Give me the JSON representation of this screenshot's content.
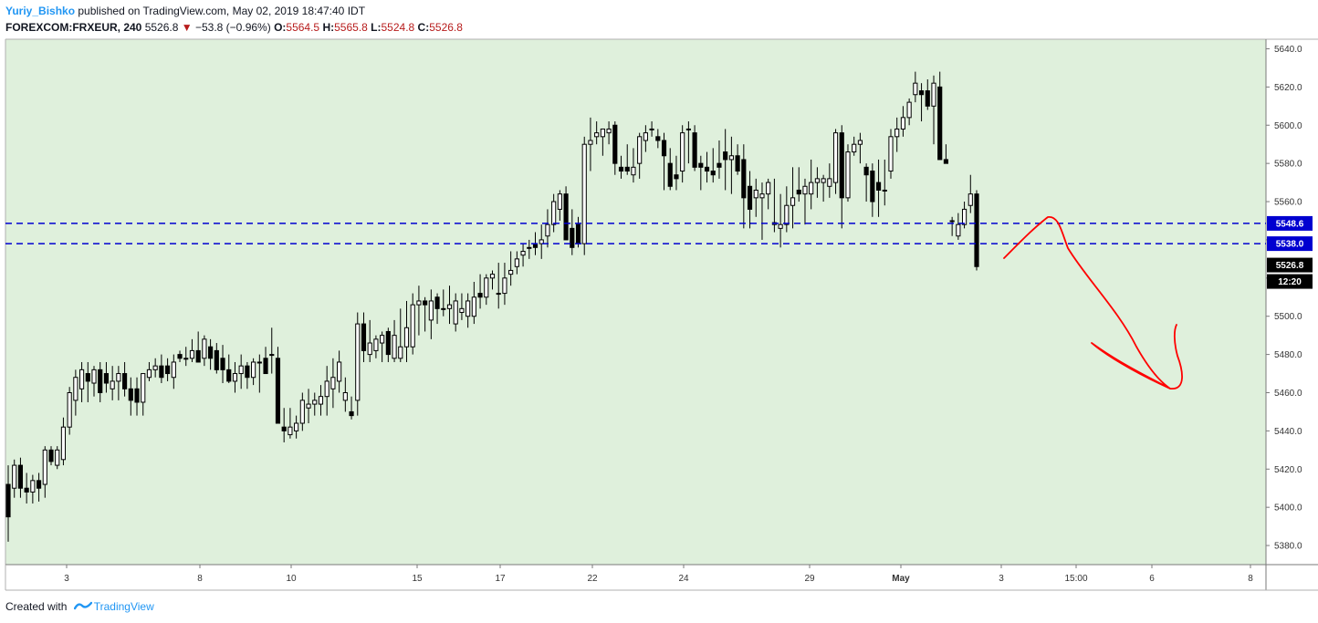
{
  "header": {
    "author": "Yuriy_Bishko",
    "published_text": "published on TradingView.com, May 02, 2019 18:47:40 IDT",
    "symbol": "FOREXCOM:FRXEUR, 240",
    "last": "5526.8",
    "change": "−53.8 (−0.96%)",
    "o_label": "O:",
    "o_value": "5564.5",
    "h_label": "H:",
    "h_value": "5565.8",
    "l_label": "L:",
    "l_value": "5524.8",
    "c_label": "C:",
    "c_value": "5526.8"
  },
  "footer": {
    "created_with": "Created with",
    "brand": "TradingView"
  },
  "colors": {
    "plot_bg": "#dff0dc",
    "up_body": "#ffffff",
    "down_body": "#000000",
    "level_line": "#0000d0",
    "level_label_bg": "#0000d0",
    "price_label_bg": "#000000",
    "drawing": "#ff0000"
  },
  "chart_data": {
    "type": "candlestick",
    "y_axis": {
      "range": [
        5370,
        5645
      ],
      "ticks": [
        5380,
        5400,
        5420,
        5440,
        5460,
        5480,
        5500,
        5520,
        5540,
        5560,
        5580,
        5600,
        5620,
        5640
      ]
    },
    "x_axis": {
      "tick_labels": [
        "3",
        "8",
        "10",
        "15",
        "17",
        "22",
        "24",
        "29",
        "May",
        "3",
        "15:00",
        "6",
        "8"
      ]
    },
    "levels": [
      5548.6,
      5538.0
    ],
    "level_labels": [
      "5548.6",
      "5538.0"
    ],
    "last_price_label": "5526.8",
    "countdown_label": "12:20",
    "candles": [
      [
        5412,
        5422,
        5382,
        5395
      ],
      [
        5410,
        5425,
        5405,
        5422
      ],
      [
        5422,
        5426,
        5405,
        5410
      ],
      [
        5410,
        5418,
        5402,
        5408
      ],
      [
        5408,
        5417,
        5402,
        5414
      ],
      [
        5414,
        5418,
        5403,
        5410
      ],
      [
        5412,
        5432,
        5405,
        5430
      ],
      [
        5430,
        5432,
        5422,
        5424
      ],
      [
        5422,
        5432,
        5420,
        5430
      ],
      [
        5425,
        5447,
        5422,
        5442
      ],
      [
        5442,
        5463,
        5438,
        5460
      ],
      [
        5456,
        5472,
        5448,
        5468
      ],
      [
        5462,
        5476,
        5455,
        5472
      ],
      [
        5470,
        5476,
        5455,
        5466
      ],
      [
        5465,
        5474,
        5458,
        5472
      ],
      [
        5472,
        5476,
        5455,
        5460
      ],
      [
        5470,
        5476,
        5460,
        5465
      ],
      [
        5462,
        5474,
        5456,
        5466
      ],
      [
        5466,
        5474,
        5456,
        5470
      ],
      [
        5470,
        5476,
        5458,
        5462
      ],
      [
        5462,
        5468,
        5448,
        5456
      ],
      [
        5462,
        5468,
        5448,
        5455
      ],
      [
        5455,
        5470,
        5448,
        5470
      ],
      [
        5468,
        5476,
        5466,
        5472
      ],
      [
        5472,
        5478,
        5468,
        5474
      ],
      [
        5474,
        5480,
        5465,
        5468
      ],
      [
        5474,
        5478,
        5466,
        5470
      ],
      [
        5468,
        5480,
        5462,
        5476
      ],
      [
        5480,
        5482,
        5476,
        5478
      ],
      [
        5478,
        5484,
        5474,
        5478
      ],
      [
        5478,
        5488,
        5476,
        5482
      ],
      [
        5482,
        5492,
        5476,
        5476
      ],
      [
        5478,
        5490,
        5474,
        5488
      ],
      [
        5484,
        5488,
        5472,
        5478
      ],
      [
        5482,
        5486,
        5470,
        5472
      ],
      [
        5478,
        5485,
        5465,
        5472
      ],
      [
        5472,
        5480,
        5465,
        5466
      ],
      [
        5466,
        5476,
        5460,
        5470
      ],
      [
        5470,
        5480,
        5462,
        5474
      ],
      [
        5474,
        5476,
        5462,
        5468
      ],
      [
        5468,
        5478,
        5464,
        5476
      ],
      [
        5476,
        5480,
        5460,
        5476
      ],
      [
        5478,
        5484,
        5470,
        5470
      ],
      [
        5480,
        5494,
        5470,
        5480
      ],
      [
        5478,
        5484,
        5444,
        5444
      ],
      [
        5442,
        5452,
        5434,
        5440
      ],
      [
        5438,
        5452,
        5436,
        5442
      ],
      [
        5440,
        5448,
        5436,
        5444
      ],
      [
        5444,
        5460,
        5440,
        5456
      ],
      [
        5452,
        5462,
        5444,
        5454
      ],
      [
        5454,
        5460,
        5448,
        5456
      ],
      [
        5454,
        5464,
        5448,
        5458
      ],
      [
        5458,
        5474,
        5448,
        5466
      ],
      [
        5462,
        5478,
        5452,
        5468
      ],
      [
        5466,
        5482,
        5460,
        5476
      ],
      [
        5456,
        5468,
        5450,
        5460
      ],
      [
        5450,
        5458,
        5446,
        5448
      ],
      [
        5456,
        5502,
        5448,
        5496
      ],
      [
        5496,
        5502,
        5476,
        5482
      ],
      [
        5480,
        5498,
        5476,
        5486
      ],
      [
        5482,
        5490,
        5478,
        5488
      ],
      [
        5486,
        5492,
        5476,
        5490
      ],
      [
        5492,
        5494,
        5476,
        5480
      ],
      [
        5478,
        5498,
        5476,
        5490
      ],
      [
        5478,
        5504,
        5476,
        5484
      ],
      [
        5484,
        5508,
        5476,
        5494
      ],
      [
        5484,
        5512,
        5480,
        5506
      ],
      [
        5506,
        5516,
        5490,
        5508
      ],
      [
        5508,
        5510,
        5492,
        5506
      ],
      [
        5498,
        5514,
        5488,
        5508
      ],
      [
        5510,
        5512,
        5496,
        5504
      ],
      [
        5504,
        5514,
        5500,
        5504
      ],
      [
        5504,
        5516,
        5496,
        5506
      ],
      [
        5496,
        5512,
        5492,
        5508
      ],
      [
        5502,
        5512,
        5498,
        5504
      ],
      [
        5500,
        5512,
        5494,
        5508
      ],
      [
        5500,
        5518,
        5496,
        5510
      ],
      [
        5512,
        5522,
        5504,
        5510
      ],
      [
        5510,
        5522,
        5506,
        5520
      ],
      [
        5520,
        5524,
        5514,
        5522
      ],
      [
        5512,
        5528,
        5504,
        5512
      ],
      [
        5512,
        5528,
        5506,
        5520
      ],
      [
        5522,
        5534,
        5516,
        5524
      ],
      [
        5526,
        5534,
        5522,
        5530
      ],
      [
        5532,
        5538,
        5526,
        5534
      ],
      [
        5536,
        5540,
        5530,
        5536
      ],
      [
        5538,
        5544,
        5532,
        5536
      ],
      [
        5538,
        5548,
        5530,
        5540
      ],
      [
        5542,
        5556,
        5536,
        5548
      ],
      [
        5548,
        5564,
        5544,
        5560
      ],
      [
        5556,
        5566,
        5550,
        5564
      ],
      [
        5564,
        5568,
        5540,
        5540
      ],
      [
        5546,
        5556,
        5532,
        5536
      ],
      [
        5548,
        5552,
        5536,
        5538
      ],
      [
        5538,
        5594,
        5532,
        5590
      ],
      [
        5590,
        5604,
        5576,
        5592
      ],
      [
        5594,
        5602,
        5590,
        5596
      ],
      [
        5594,
        5598,
        5584,
        5598
      ],
      [
        5596,
        5602,
        5590,
        5598
      ],
      [
        5600,
        5602,
        5574,
        5580
      ],
      [
        5578,
        5584,
        5572,
        5576
      ],
      [
        5578,
        5590,
        5574,
        5576
      ],
      [
        5574,
        5588,
        5570,
        5578
      ],
      [
        5580,
        5596,
        5572,
        5594
      ],
      [
        5592,
        5600,
        5586,
        5596
      ],
      [
        5598,
        5602,
        5594,
        5598
      ],
      [
        5594,
        5598,
        5588,
        5592
      ],
      [
        5592,
        5596,
        5566,
        5584
      ],
      [
        5580,
        5588,
        5566,
        5568
      ],
      [
        5574,
        5584,
        5566,
        5572
      ],
      [
        5576,
        5600,
        5570,
        5596
      ],
      [
        5598,
        5602,
        5580,
        5598
      ],
      [
        5596,
        5600,
        5576,
        5578
      ],
      [
        5580,
        5584,
        5566,
        5578
      ],
      [
        5578,
        5586,
        5570,
        5576
      ],
      [
        5576,
        5588,
        5570,
        5574
      ],
      [
        5580,
        5592,
        5572,
        5578
      ],
      [
        5586,
        5598,
        5566,
        5582
      ],
      [
        5582,
        5594,
        5564,
        5584
      ],
      [
        5584,
        5590,
        5574,
        5576
      ],
      [
        5582,
        5590,
        5546,
        5562
      ],
      [
        5568,
        5576,
        5546,
        5556
      ],
      [
        5562,
        5572,
        5552,
        5566
      ],
      [
        5562,
        5570,
        5540,
        5564
      ],
      [
        5564,
        5572,
        5556,
        5570
      ],
      [
        5548,
        5572,
        5544,
        5549
      ],
      [
        5546,
        5564,
        5536,
        5548
      ],
      [
        5548,
        5568,
        5544,
        5558
      ],
      [
        5558,
        5578,
        5546,
        5562
      ],
      [
        5566,
        5578,
        5560,
        5564
      ],
      [
        5564,
        5572,
        5548,
        5568
      ],
      [
        5564,
        5582,
        5556,
        5570
      ],
      [
        5570,
        5578,
        5562,
        5572
      ],
      [
        5570,
        5574,
        5560,
        5572
      ],
      [
        5568,
        5580,
        5562,
        5572
      ],
      [
        5570,
        5598,
        5564,
        5596
      ],
      [
        5596,
        5600,
        5546,
        5562
      ],
      [
        5562,
        5590,
        5560,
        5586
      ],
      [
        5586,
        5594,
        5584,
        5590
      ],
      [
        5590,
        5596,
        5580,
        5592
      ],
      [
        5578,
        5580,
        5560,
        5574
      ],
      [
        5576,
        5580,
        5552,
        5560
      ],
      [
        5570,
        5582,
        5552,
        5566
      ],
      [
        5566,
        5582,
        5558,
        5566
      ],
      [
        5576,
        5598,
        5572,
        5594
      ],
      [
        5594,
        5604,
        5586,
        5598
      ],
      [
        5598,
        5610,
        5594,
        5604
      ],
      [
        5604,
        5614,
        5600,
        5612
      ],
      [
        5616,
        5628,
        5612,
        5622
      ],
      [
        5618,
        5622,
        5602,
        5616
      ],
      [
        5618,
        5624,
        5608,
        5610
      ],
      [
        5610,
        5626,
        5590,
        5622
      ],
      [
        5620,
        5628,
        5582,
        5582
      ],
      [
        5582,
        5590,
        5580,
        5580
      ],
      [
        5550,
        5552,
        5542,
        5550
      ],
      [
        5542,
        5554,
        5540,
        5548
      ],
      [
        5548,
        5560,
        5546,
        5556
      ],
      [
        5558,
        5574,
        5554,
        5564
      ],
      [
        5564,
        5566,
        5524,
        5526
      ]
    ]
  }
}
